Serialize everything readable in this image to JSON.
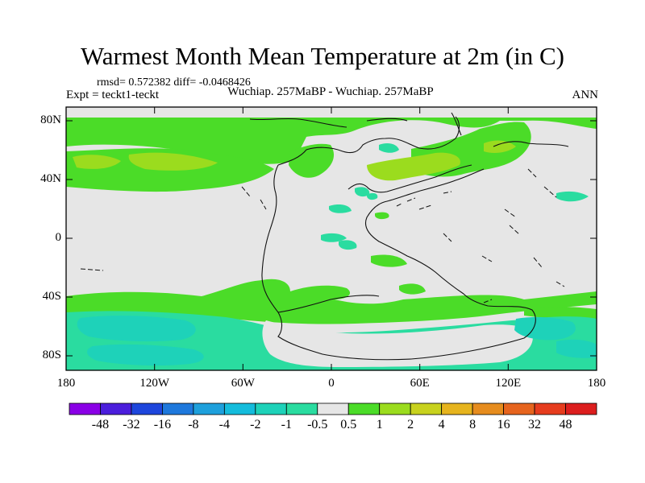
{
  "map": {
    "title": "Warmest Month Mean Temperature at 2m (in C)",
    "stats": "rmsd= 0.572382 diff= -0.0468426",
    "experiment": "Expt = teckt1-teckt",
    "comparison": "Wuchiap. 257MaBP - Wuchiap. 257MaBP",
    "period": "ANN",
    "lat_labels": [
      "80N",
      "40N",
      "0",
      "40S",
      "80S"
    ],
    "lon_labels": [
      "180",
      "120W",
      "60W",
      "0",
      "60E",
      "120E",
      "180"
    ],
    "projection": "cylindrical equidistant",
    "background_color": "#e6e6e6"
  },
  "colorbar": {
    "labels": [
      "-48",
      "-32",
      "-16",
      "-8",
      "-4",
      "-2",
      "-1",
      "-0.5",
      "0.5",
      "1",
      "2",
      "4",
      "8",
      "16",
      "32",
      "48"
    ],
    "colors": [
      "#8a00e6",
      "#4b1edc",
      "#1e46dc",
      "#1e78dc",
      "#1ea0dc",
      "#14bcdc",
      "#1ed2b9",
      "#2adca0",
      "#e6e6e6",
      "#4bdc28",
      "#9bdc1e",
      "#c8d21e",
      "#e6b41e",
      "#e68c1e",
      "#e6641e",
      "#e63c1e",
      "#dc1e1e"
    ]
  }
}
